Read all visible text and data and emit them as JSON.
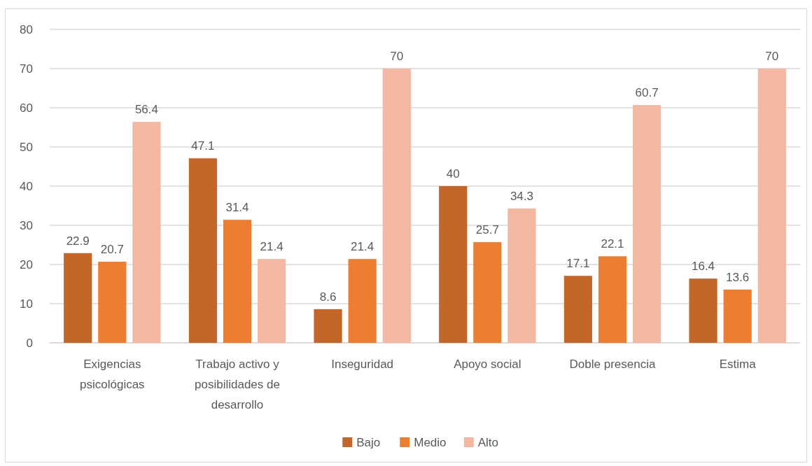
{
  "chart_data": {
    "type": "bar",
    "categories": [
      "Exigencias psicológicas",
      "Trabajo activo y posibilidades de desarrollo",
      "Inseguridad",
      "Apoyo social",
      "Doble presencia",
      "Estima"
    ],
    "series": [
      {
        "name": "Bajo",
        "color": "#c4652a",
        "values": [
          22.9,
          47.1,
          8.6,
          40,
          17.1,
          16.4
        ]
      },
      {
        "name": "Medio",
        "color": "#ed7d31",
        "values": [
          20.7,
          31.4,
          21.4,
          25.7,
          22.1,
          13.6
        ]
      },
      {
        "name": "Alto",
        "color": "#f4b7a2",
        "values": [
          56.4,
          21.4,
          70,
          34.3,
          60.7,
          70
        ]
      }
    ],
    "ylim": [
      0,
      80
    ],
    "yticks": [
      0,
      10,
      20,
      30,
      40,
      50,
      60,
      70,
      80
    ],
    "grid": "y",
    "legend": "bottom",
    "data_labels": true
  }
}
